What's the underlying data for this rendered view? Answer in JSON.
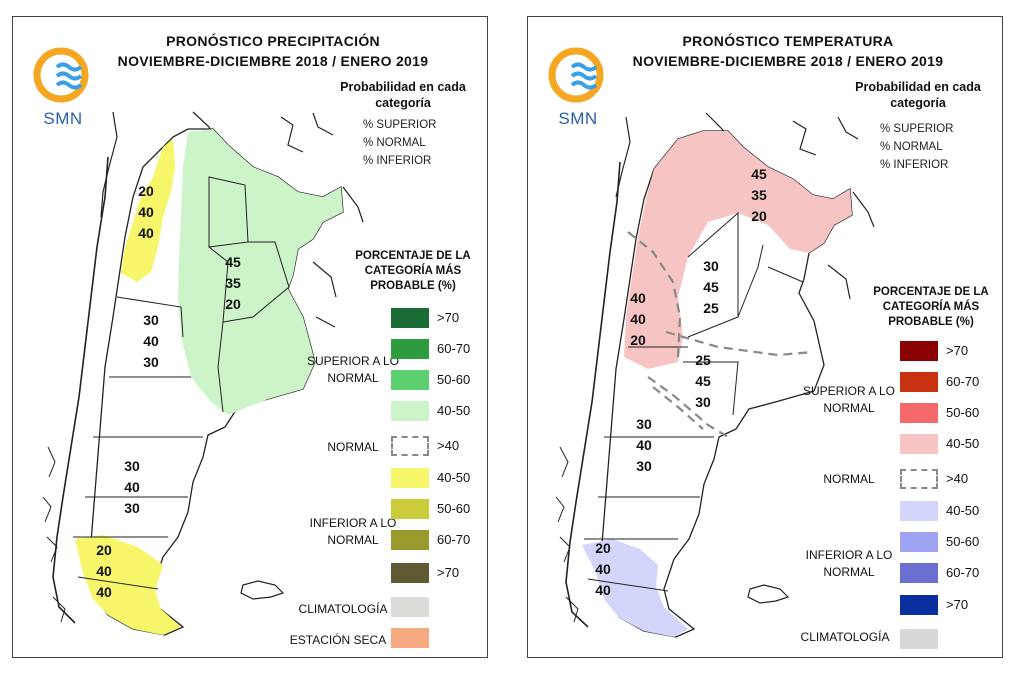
{
  "colors": {
    "sup_light_green": "#ccf4c8",
    "inf_yellow": "#f7f56a",
    "temp_sup_pink": "#f7c4c4",
    "temp_inf_lavender": "#d3d6fa",
    "sea": "#ffffff",
    "border": "#222222"
  },
  "logo": {
    "text": "SMN"
  },
  "left": {
    "title_line1": "PRONÓSTICO PRECIPITACIÓN",
    "title_line2": "NOVIEMBRE-DICIEMBRE 2018 / ENERO 2019",
    "prob_title": "Probabilidad en cada categoría",
    "cat_lines": [
      "% SUPERIOR",
      "% NORMAL",
      "% INFERIOR"
    ],
    "pct_title": "PORCENTAJE DE LA CATEGORÍA MÁS PROBABLE (%)",
    "groups": {
      "superior": "SUPERIOR A LO NORMAL",
      "normal": "NORMAL",
      "inferior": "INFERIOR A LO NORMAL",
      "climatologia": "CLIMATOLOGÍA",
      "estacion_seca": "ESTACIÓN SECA"
    },
    "legend": [
      {
        "label": ">70",
        "color": "#1a6b34"
      },
      {
        "label": "60-70",
        "color": "#2c9c3f"
      },
      {
        "label": "50-60",
        "color": "#5ccf6f"
      },
      {
        "label": "40-50",
        "color": "#ccf4c8"
      },
      {
        "label": ">40",
        "color": "dashed"
      },
      {
        "label": "40-50",
        "color": "#f7f56a"
      },
      {
        "label": "50-60",
        "color": "#cccc3a"
      },
      {
        "label": "60-70",
        "color": "#9a9a2c"
      },
      {
        "label": ">70",
        "color": "#5f5a33"
      },
      {
        "label": "",
        "color": "#dcdcd8"
      },
      {
        "label": "",
        "color": "#f7a982"
      }
    ],
    "regions": [
      {
        "vals": [
          "20",
          "40",
          "40"
        ]
      },
      {
        "vals": [
          "45",
          "35",
          "20"
        ]
      },
      {
        "vals": [
          "30",
          "40",
          "30"
        ]
      },
      {
        "vals": [
          "30",
          "40",
          "30"
        ]
      },
      {
        "vals": [
          "20",
          "40",
          "40"
        ]
      }
    ]
  },
  "right": {
    "title_line1": "PRONÓSTICO TEMPERATURA",
    "title_line2": "NOVIEMBRE-DICIEMBRE 2018 / ENERO 2019",
    "prob_title": "Probabilidad en cada categoría",
    "cat_lines": [
      "% SUPERIOR",
      "% NORMAL",
      "% INFERIOR"
    ],
    "pct_title": "PORCENTAJE DE LA CATEGORÍA MÁS PROBABLE (%)",
    "groups": {
      "superior": "SUPERIOR A LO NORMAL",
      "normal": "NORMAL",
      "inferior": "INFERIOR A LO NORMAL",
      "climatologia": "CLIMATOLOGÍA"
    },
    "legend": [
      {
        "label": ">70",
        "color": "#8b0000"
      },
      {
        "label": "60-70",
        "color": "#c93210"
      },
      {
        "label": "50-60",
        "color": "#f46a6a"
      },
      {
        "label": "40-50",
        "color": "#f7c4c4"
      },
      {
        "label": ">40",
        "color": "dashed"
      },
      {
        "label": "40-50",
        "color": "#d3d6fa"
      },
      {
        "label": "50-60",
        "color": "#9fa4f2"
      },
      {
        "label": "60-70",
        "color": "#6a6fd0"
      },
      {
        "label": ">70",
        "color": "#0a2f9e"
      },
      {
        "label": "",
        "color": "#d8d8d8"
      }
    ],
    "regions": [
      {
        "vals": [
          "45",
          "35",
          "20"
        ]
      },
      {
        "vals": [
          "30",
          "45",
          "25"
        ]
      },
      {
        "vals": [
          "40",
          "40",
          "20"
        ]
      },
      {
        "vals": [
          "25",
          "45",
          "30"
        ]
      },
      {
        "vals": [
          "30",
          "40",
          "30"
        ]
      },
      {
        "vals": [
          "20",
          "40",
          "40"
        ]
      }
    ]
  }
}
